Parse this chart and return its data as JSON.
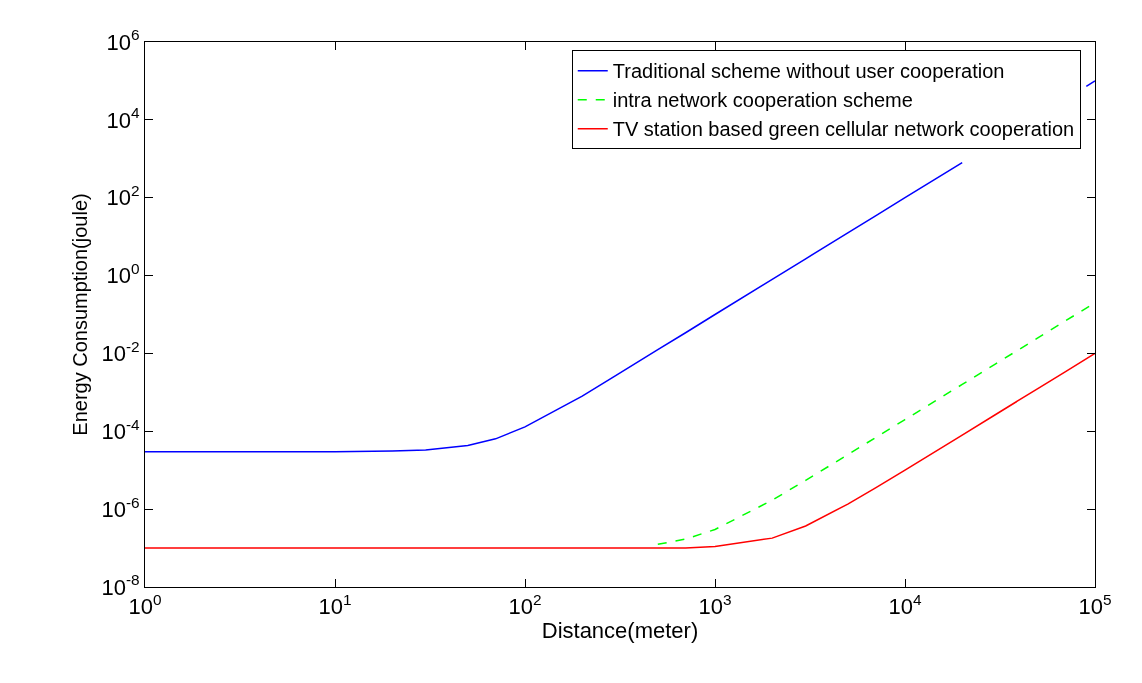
{
  "chart_data": {
    "type": "line",
    "xlabel": "Distance(meter)",
    "ylabel": "Energy Consumption(joule)",
    "log": "xy",
    "grid": false,
    "legend": "top right",
    "marker": "none",
    "x": [
      1,
      10,
      20,
      30,
      50,
      70,
      100,
      200,
      300,
      500,
      700,
      1000,
      2000,
      3000,
      5000,
      7000,
      10000,
      20000,
      30000,
      50000,
      70000,
      100000
    ],
    "xlim": [
      1,
      100000
    ],
    "ylim": [
      1e-08,
      1000000.0
    ],
    "xticks": [
      {
        "value": 1,
        "label": "10$^{0}$"
      },
      {
        "value": 10,
        "label": "10$^{1}$"
      },
      {
        "value": 100,
        "label": "10$^{2}$"
      },
      {
        "value": 1000,
        "label": "10$^{3}$"
      },
      {
        "value": 10000,
        "label": "10$^{4}$"
      },
      {
        "value": 100000,
        "label": "10$^{5}$"
      }
    ],
    "yticks": [
      {
        "value": 1e-08,
        "label": "10$^{-8}$"
      },
      {
        "value": 1e-06,
        "label": "10$^{-6}$"
      },
      {
        "value": 0.0001,
        "label": "10$^{-4}$"
      },
      {
        "value": 0.01,
        "label": "10$^{-2}$"
      },
      {
        "value": 1,
        "label": "10$^{0}$"
      },
      {
        "value": 100,
        "label": "10$^{2}$"
      },
      {
        "value": 10000,
        "label": "10$^{4}$"
      },
      {
        "value": 1000000,
        "label": "10$^{6}$"
      }
    ],
    "series": [
      {
        "name": "Traditional scheme without user cooperation",
        "color": "#0000ff",
        "line_style": "solid",
        "x": [
          1,
          10,
          20,
          30,
          50,
          70,
          100,
          200,
          300,
          500,
          700,
          1000,
          2000,
          3000,
          5000,
          7000,
          10000,
          20000,
          30000,
          90000,
          100000
        ],
        "values": [
          3e-05,
          3e-05,
          3.1e-05,
          3.3e-05,
          4.3e-05,
          6.4e-05,
          0.00013,
          0.0008,
          0.0027,
          0.0125,
          0.034,
          0.1,
          0.8,
          2.7,
          12.5,
          34,
          100,
          800,
          null,
          72900,
          100000
        ]
      },
      {
        "name": "intra network cooperation scheme",
        "color": "#00ff00",
        "line_style": "dashed",
        "values": [
          null,
          null,
          null,
          null,
          null,
          null,
          null,
          null,
          null,
          1.25e-07,
          1.7e-07,
          3e-07,
          1.7e-06,
          5.5e-06,
          2.5e-05,
          6.9e-05,
          0.0002,
          0.0016,
          0.0054,
          0.025,
          0.069,
          0.2
        ]
      },
      {
        "name": "TV station based green cellular network cooperation",
        "color": "#ff0000",
        "line_style": "solid",
        "values": [
          1e-07,
          1e-07,
          1e-07,
          1e-07,
          1e-07,
          1e-07,
          1e-07,
          1e-07,
          1e-07,
          1e-07,
          1e-07,
          1.1e-07,
          1.8e-07,
          3.7e-07,
          1.35e-06,
          3.5e-06,
          1e-05,
          8e-05,
          0.00027,
          0.00125,
          0.0034,
          0.01
        ]
      }
    ]
  }
}
